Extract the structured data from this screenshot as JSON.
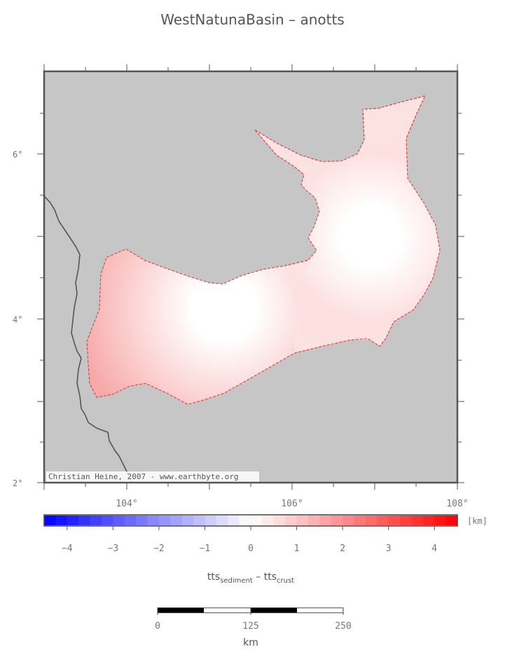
{
  "map": {
    "title": "WestNatunaBasin – anotts",
    "credit": "Christian Heine, 2007 - www.earthbyte.org",
    "lat_labels": [
      "2°",
      "4°",
      "6°"
    ],
    "lon_labels": [
      "104°",
      "106°",
      "108°"
    ]
  },
  "colorbar": {
    "unit": "[km]",
    "ticks": [
      "−4",
      "−3",
      "−2",
      "−1",
      "0",
      "1",
      "2",
      "3",
      "4"
    ],
    "range": [
      -4.5,
      4.5
    ],
    "colors": {
      "low": "#0000ff",
      "mid": "#ffffff",
      "high": "#ff0000"
    },
    "label_main_a": "tts",
    "label_sub_a": "sediment",
    "label_sep": " – tts",
    "label_sub_b": "crust"
  },
  "scalebar": {
    "ticks": [
      "0",
      "125",
      "250"
    ],
    "unit": "km"
  }
}
